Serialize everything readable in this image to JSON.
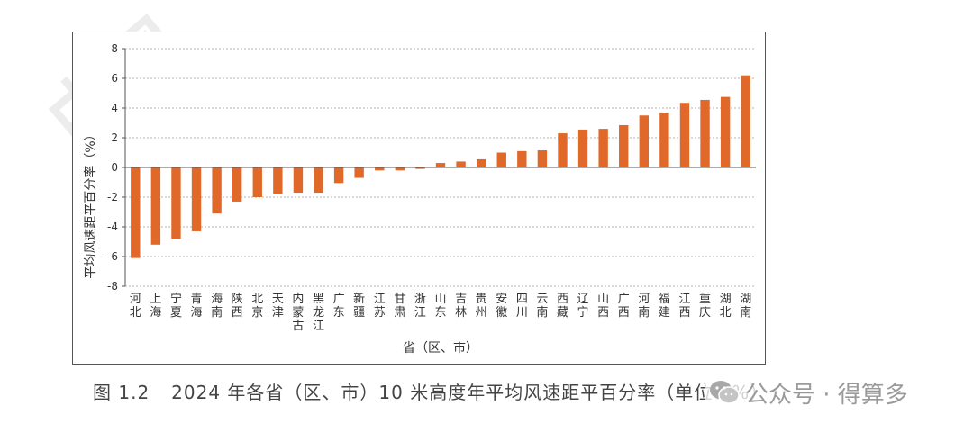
{
  "watermark": {
    "text": "中国"
  },
  "chart_data": {
    "type": "bar",
    "title": "",
    "xlabel": "省（区、市）",
    "ylabel": "平均风速距平百分率（%）",
    "ylim": [
      -8,
      8
    ],
    "yticks": [
      8,
      6,
      4,
      2,
      0,
      -2,
      -4,
      -6,
      -8
    ],
    "grid": true,
    "bar_color": "#e0692a",
    "categories": [
      "河北",
      "上海",
      "宁夏",
      "青海",
      "海南",
      "陕西",
      "北京",
      "天津",
      "内蒙古",
      "黑龙江",
      "广东",
      "新疆",
      "江苏",
      "甘肃",
      "浙江",
      "山东",
      "吉林",
      "贵州",
      "安徽",
      "四川",
      "云南",
      "西藏",
      "辽宁",
      "山西",
      "广西",
      "河南",
      "福建",
      "江西",
      "重庆",
      "湖北",
      "湖南"
    ],
    "values": [
      -6.1,
      -5.2,
      -4.8,
      -4.3,
      -3.1,
      -2.3,
      -2.0,
      -1.8,
      -1.7,
      -1.7,
      -1.05,
      -0.7,
      -0.2,
      -0.2,
      -0.1,
      0.3,
      0.4,
      0.55,
      1.0,
      1.1,
      1.15,
      2.3,
      2.55,
      2.6,
      2.85,
      3.5,
      3.7,
      4.35,
      4.55,
      4.75,
      6.2
    ]
  },
  "caption": {
    "figure_number": "图 1.2",
    "title": "2024 年各省（区、市）10 米高度年平均风速距平百分率（单位：%）"
  },
  "wechat": {
    "text": "公众号 · 得算多",
    "icon": "wechat-icon"
  }
}
